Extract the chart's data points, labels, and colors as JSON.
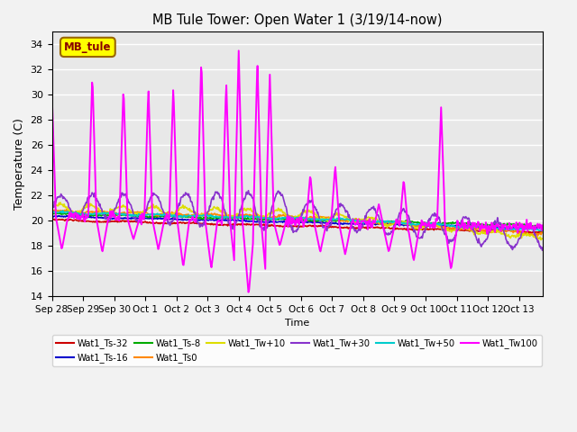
{
  "title": "MB Tule Tower: Open Water 1 (3/19/14-now)",
  "xlabel": "Time",
  "ylabel": "Temperature (C)",
  "ylim": [
    14,
    35
  ],
  "yticks": [
    14,
    16,
    18,
    20,
    22,
    24,
    26,
    28,
    30,
    32,
    34
  ],
  "bg_color": "#e8e8e8",
  "series": [
    {
      "label": "Wat1_Ts-32",
      "color": "#cc0000"
    },
    {
      "label": "Wat1_Ts-16",
      "color": "#0000cc"
    },
    {
      "label": "Wat1_Ts-8",
      "color": "#00aa00"
    },
    {
      "label": "Wat1_Ts0",
      "color": "#ff8800"
    },
    {
      "label": "Wat1_Tw+10",
      "color": "#dddd00"
    },
    {
      "label": "Wat1_Tw+30",
      "color": "#8833cc"
    },
    {
      "label": "Wat1_Tw+50",
      "color": "#00cccc"
    },
    {
      "label": "Wat1_Tw100",
      "color": "#ff00ff"
    }
  ],
  "annotation": {
    "text": "MB_tule",
    "bg": "#ffff00",
    "border_color": "#996600",
    "text_color": "#880000"
  },
  "magenta_spikes": [
    {
      "day": 0.0,
      "peak": 30.1,
      "trough": 17.7
    },
    {
      "day": 1.3,
      "peak": 31.7,
      "trough": 17.5
    },
    {
      "day": 2.3,
      "peak": 30.7,
      "trough": 18.5
    },
    {
      "day": 3.1,
      "peak": 30.6,
      "trough": 17.7
    },
    {
      "day": 3.9,
      "peak": 30.7,
      "trough": 16.3
    },
    {
      "day": 4.8,
      "peak": 33.0,
      "trough": 16.2
    },
    {
      "day": 5.6,
      "peak": 31.1,
      "trough": 15.3
    },
    {
      "day": 6.0,
      "peak": 33.5,
      "trough": 14.1
    },
    {
      "day": 6.6,
      "peak": 32.7,
      "trough": 14.3
    },
    {
      "day": 7.0,
      "peak": 31.6,
      "trough": 18.0
    },
    {
      "day": 8.3,
      "peak": 23.7,
      "trough": 17.5
    },
    {
      "day": 9.1,
      "peak": 24.4,
      "trough": 17.3
    },
    {
      "day": 10.5,
      "peak": 21.3,
      "trough": 17.5
    },
    {
      "day": 11.3,
      "peak": 23.3,
      "trough": 16.8
    },
    {
      "day": 12.5,
      "peak": 29.0,
      "trough": 16.1
    }
  ]
}
